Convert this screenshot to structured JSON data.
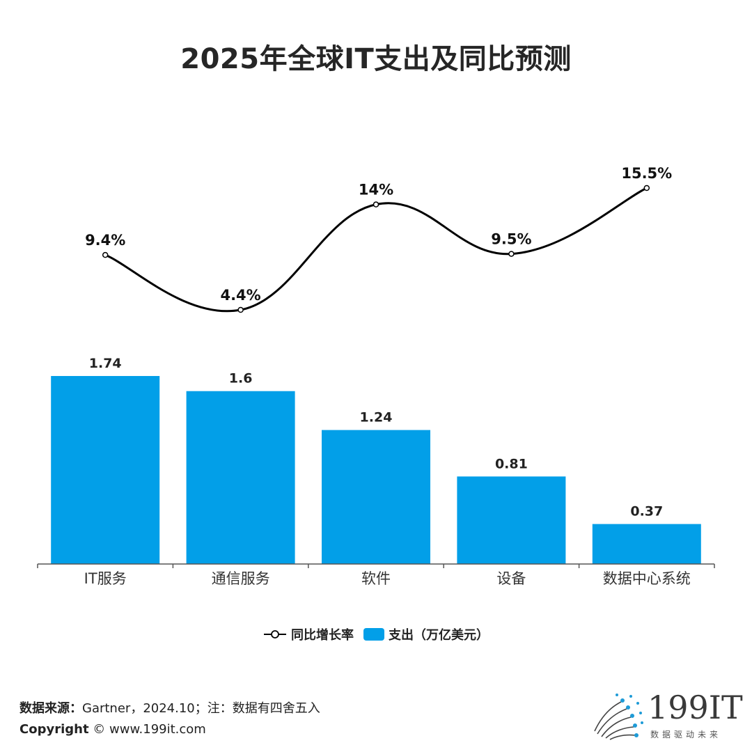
{
  "title": "2025年全球IT支出及同比预测",
  "chart_data": {
    "type": "bar",
    "categories": [
      "IT服务",
      "通信服务",
      "软件",
      "设备",
      "数据中心系统"
    ],
    "series": [
      {
        "name": "支出（万亿美元）",
        "type": "bar",
        "values": [
          1.74,
          1.6,
          1.24,
          0.81,
          0.37
        ],
        "value_labels": [
          "1.74",
          "1.6",
          "1.24",
          "0.81",
          "0.37"
        ],
        "color": "#029fe8"
      },
      {
        "name": "同比增长率",
        "type": "line",
        "values": [
          9.4,
          4.4,
          14,
          9.5,
          15.5
        ],
        "value_labels": [
          "9.4%",
          "4.4%",
          "14%",
          "9.5%",
          "15.5%"
        ],
        "color": "#000000"
      }
    ],
    "ylim": [
      0,
      1.74
    ],
    "y2lim": [
      4.4,
      15.5
    ],
    "grid": false,
    "legend": "bottom-center"
  },
  "legend": {
    "line_label": "同比增长率",
    "bar_label": "支出（万亿美元）"
  },
  "footer": {
    "source_label": "数据来源：",
    "source_text": "Gartner，2024.10；注：数据有四舍五入",
    "copyright_label": "Copyright",
    "copyright_text": "©  www.199it.com"
  },
  "logo": {
    "text": "199IT",
    "subtitle": "数据驱动未来",
    "accent_color": "#1e9bd7"
  }
}
